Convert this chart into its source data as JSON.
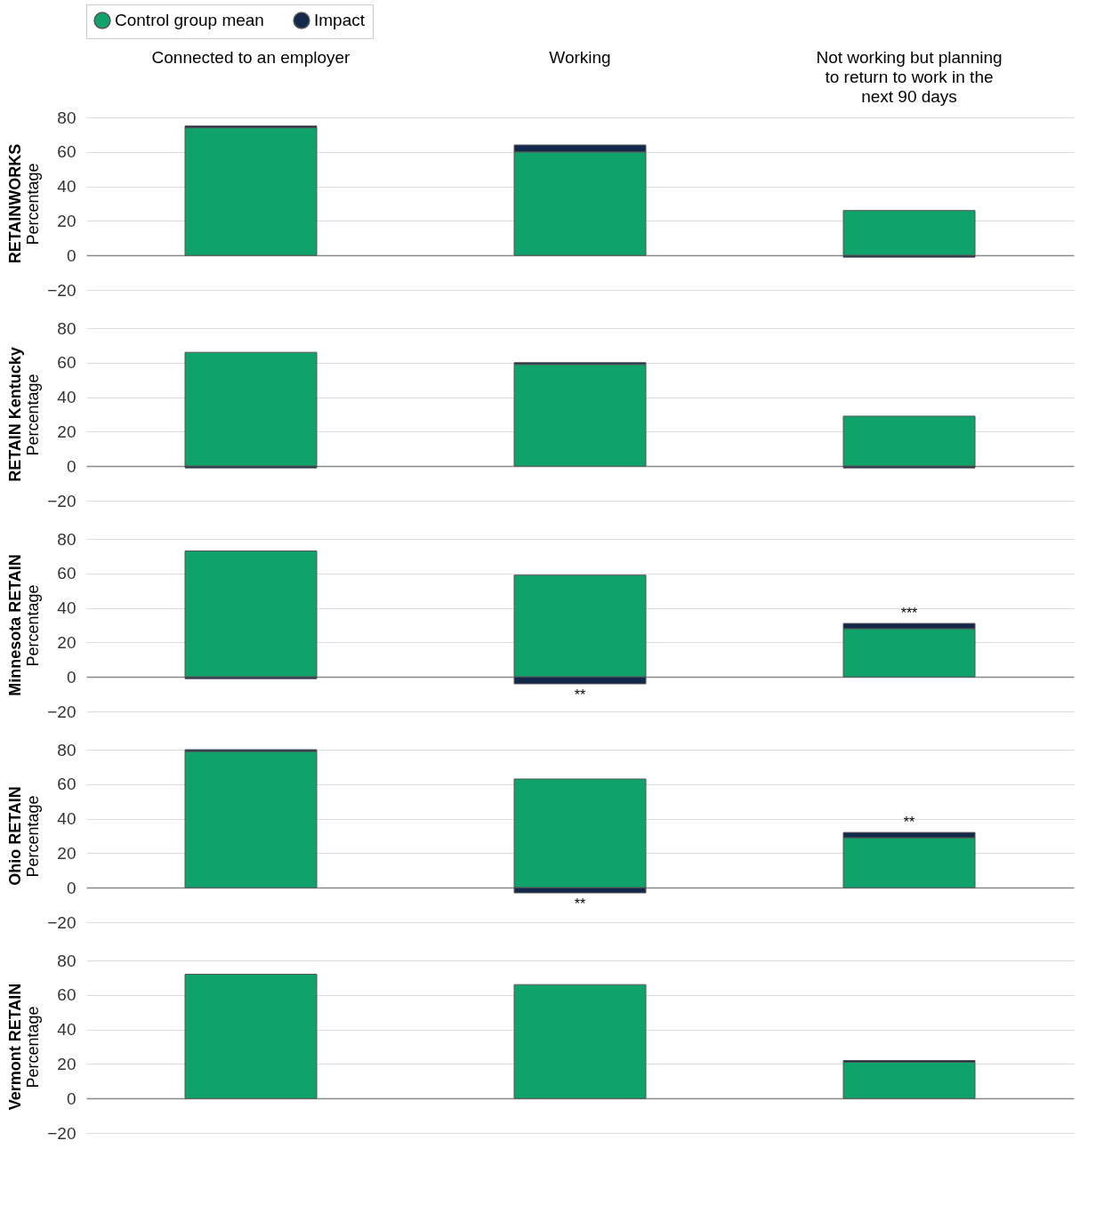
{
  "chart_data": [
    {
      "type": "bar",
      "title": "RETAINWORKS",
      "ylabel": "Percentage",
      "categories": [
        "Connected to an employer",
        "Working",
        "Not working but planning to return to work in the next 90 days"
      ],
      "stacked": true,
      "series": [
        {
          "name": "Control group mean",
          "color": "#0fa36b",
          "values": [
            74,
            60,
            26
          ]
        },
        {
          "name": "Impact",
          "color": "#13294b",
          "values": [
            1,
            4,
            -1
          ]
        }
      ],
      "ylim": [
        -20,
        80
      ],
      "yticks": [
        -20,
        0,
        20,
        40,
        60,
        80
      ],
      "grid": "y",
      "legend": "top"
    },
    {
      "type": "bar",
      "title": "RETAIN Kentucky",
      "ylabel": "Percentage",
      "categories": [
        "Connected to an employer",
        "Working",
        "Not working but planning to return to work in the next 90 days"
      ],
      "stacked": true,
      "series": [
        {
          "color": "#0fa36b",
          "values": [
            66,
            59,
            29
          ]
        },
        {
          "color": "#13294b",
          "values": [
            -1,
            1,
            -1
          ]
        }
      ],
      "ylim": [
        -20,
        80
      ],
      "yticks": [
        -20,
        0,
        20,
        40,
        60,
        80
      ],
      "grid": "y",
      "tick_labels": "y"
    },
    {
      "type": "bar",
      "title": "Minnesota RETAIN",
      "ylabel": "Percentage",
      "categories": [
        "Connected to an employer",
        "Working",
        "Not working but planning to return to work in the next 90 days"
      ],
      "stacked": true,
      "series": [
        {
          "color": "#0fa36b",
          "values": [
            73,
            59,
            28
          ]
        },
        {
          "color": "#13294b",
          "values": [
            -1,
            -4,
            3
          ]
        }
      ],
      "ylim": [
        -20,
        80
      ],
      "yticks": [
        -20,
        0,
        20,
        40,
        60,
        80
      ],
      "grid": "y",
      "tick_labels": "y",
      "annotations": [
        {
          "text": "**",
          "x": "Working",
          "y": -4
        },
        {
          "text": "***",
          "x": "Not working but planning to return to work in the next 90 days",
          "y": 31
        }
      ]
    },
    {
      "type": "bar",
      "title": "Ohio RETAIN",
      "ylabel": "Percentage",
      "categories": [
        "Connected to an employer",
        "Working",
        "Not working but planning to return to work in the next 90 days"
      ],
      "stacked": true,
      "series": [
        {
          "color": "#0fa36b",
          "values": [
            79,
            63,
            29
          ]
        },
        {
          "color": "#13294b",
          "values": [
            1,
            -3,
            3
          ]
        }
      ],
      "ylim": [
        -20,
        80
      ],
      "yticks": [
        -20,
        0,
        20,
        40,
        60,
        80
      ],
      "grid": "y",
      "tick_labels": "y",
      "annotations": [
        {
          "text": "**",
          "x": "Working",
          "y": -3
        },
        {
          "text": "**",
          "x": "Not working but planning to return to work in the next 90 days",
          "y": 32
        }
      ]
    },
    {
      "type": "bar",
      "title": "Vermont RETAIN",
      "ylabel": "Percentage",
      "categories": [
        "Connected to an employer",
        "Working",
        "Not working but planning to return to work in the next 90 days"
      ],
      "stacked": true,
      "series": [
        {
          "color": "#0fa36b",
          "values": [
            72,
            66,
            21
          ]
        },
        {
          "color": "#13294b",
          "values": [
            0,
            0,
            1
          ]
        }
      ],
      "ylim": [
        -20,
        80
      ],
      "yticks": [
        -20,
        0,
        20,
        40,
        60,
        80
      ],
      "grid": "y",
      "tick_labels": "y"
    }
  ]
}
